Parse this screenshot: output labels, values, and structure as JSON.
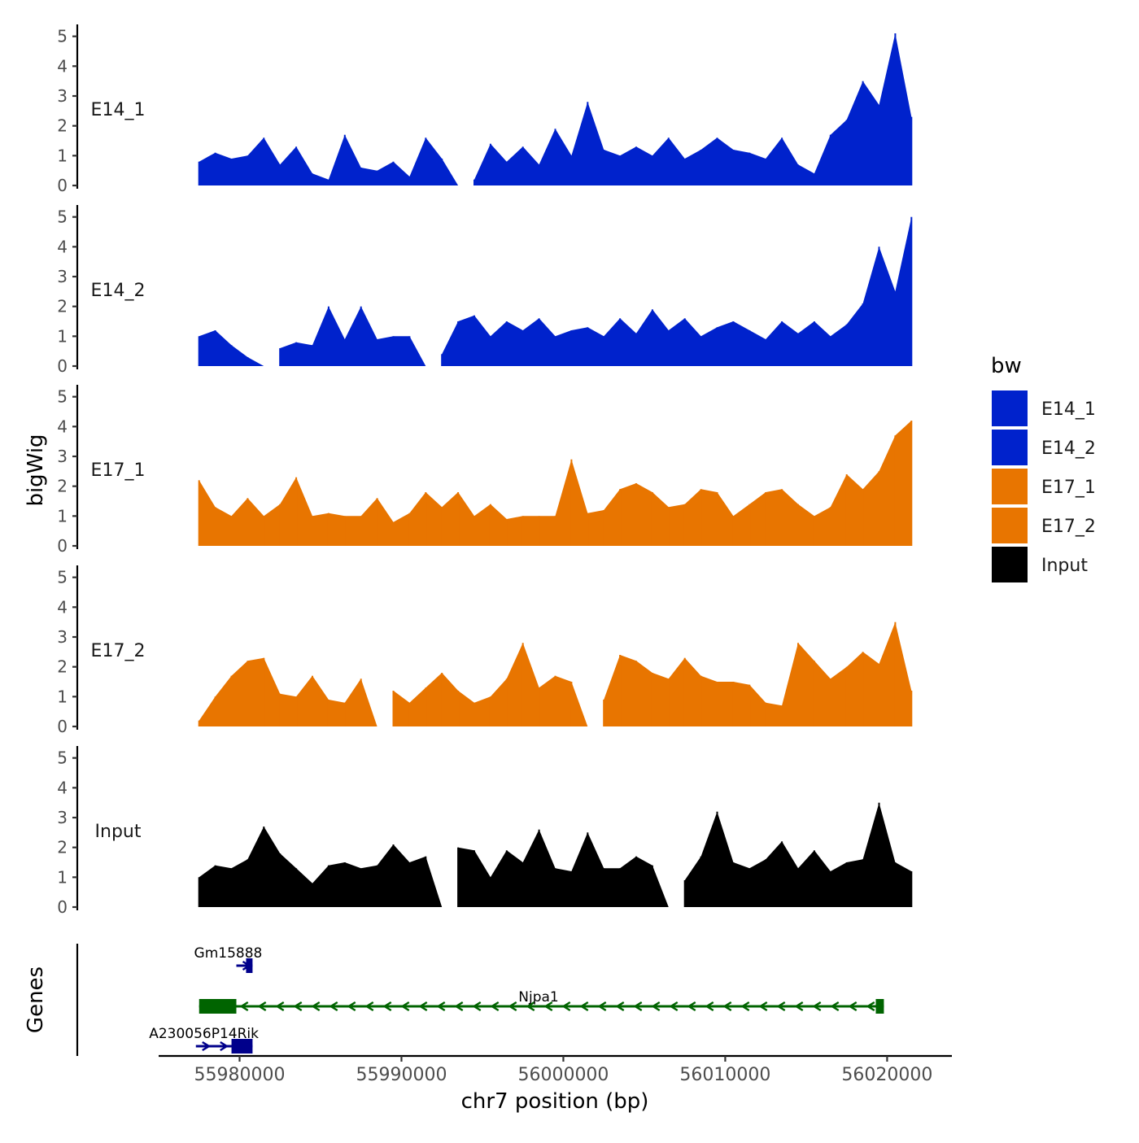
{
  "chart_data": {
    "type": "area",
    "ylabel": "bigWig",
    "xlabel": "chr7 position (bp)",
    "xlim": [
      55975000,
      56024000
    ],
    "xticks": [
      55980000,
      55990000,
      56000000,
      56010000,
      56020000
    ],
    "xtick_labels": [
      "55980000",
      "55990000",
      "56000000",
      "56010000",
      "56020000"
    ],
    "ylim": [
      0,
      5.4
    ],
    "yticks": [
      0,
      1,
      2,
      3,
      4,
      5
    ],
    "ytick_labels": [
      "0",
      "1",
      "2",
      "3",
      "4",
      "5"
    ],
    "genes_label": "Genes",
    "legend": {
      "title": "bw",
      "position": "right",
      "entries": [
        {
          "name": "E14_1",
          "color": "#0022cc"
        },
        {
          "name": "E14_2",
          "color": "#0022cc"
        },
        {
          "name": "E17_1",
          "color": "#e87500"
        },
        {
          "name": "E17_2",
          "color": "#e87500"
        },
        {
          "name": "Input",
          "color": "#000000"
        }
      ]
    },
    "series": [
      {
        "name": "E14_1",
        "color": "#0022cc",
        "x": [
          55977500,
          55978500,
          55979500,
          55980500,
          55981500,
          55982500,
          55983500,
          55984500,
          55985500,
          55986500,
          55987500,
          55988500,
          55989500,
          55990500,
          55991500,
          55992500,
          55993500,
          55994500,
          55995500,
          55996500,
          55997500,
          55998500,
          55999500,
          56000500,
          56001500,
          56002500,
          56003500,
          56004500,
          56005500,
          56006500,
          56007500,
          56008500,
          56009500,
          56010500,
          56011500,
          56012500,
          56013500,
          56014500,
          56015500,
          56016500,
          56017500,
          56018500,
          56019500,
          56020500,
          56021500
        ],
        "values": [
          0.8,
          1.1,
          0.9,
          1.0,
          1.6,
          0.7,
          1.3,
          0.4,
          0.2,
          1.7,
          0.6,
          0.5,
          0.8,
          0.3,
          1.6,
          0.9,
          0.0,
          0.2,
          1.4,
          0.8,
          1.3,
          0.7,
          1.9,
          1.0,
          2.8,
          1.2,
          1.0,
          1.3,
          1.0,
          1.6,
          0.9,
          1.2,
          1.6,
          1.2,
          1.1,
          0.9,
          1.6,
          0.7,
          0.4,
          1.7,
          2.2,
          3.5,
          2.7,
          5.1,
          2.3
        ]
      },
      {
        "name": "E14_2",
        "color": "#0022cc",
        "x": [
          55977500,
          55978500,
          55979500,
          55980500,
          55981500,
          55982500,
          55983500,
          55984500,
          55985500,
          55986500,
          55987500,
          55988500,
          55989500,
          55990500,
          55991500,
          55992500,
          55993500,
          55994500,
          55995500,
          55996500,
          55997500,
          55998500,
          55999500,
          56000500,
          56001500,
          56002500,
          56003500,
          56004500,
          56005500,
          56006500,
          56007500,
          56008500,
          56009500,
          56010500,
          56011500,
          56012500,
          56013500,
          56014500,
          56015500,
          56016500,
          56017500,
          56018500,
          56019500,
          56020500,
          56021500
        ],
        "values": [
          1.0,
          1.2,
          0.7,
          0.3,
          0.0,
          0.6,
          0.8,
          0.7,
          2.0,
          0.9,
          2.0,
          0.9,
          1.0,
          1.0,
          0.0,
          0.4,
          1.5,
          1.7,
          1.0,
          1.5,
          1.2,
          1.6,
          1.0,
          1.2,
          1.3,
          1.0,
          1.6,
          1.1,
          1.9,
          1.2,
          1.6,
          1.0,
          1.3,
          1.5,
          1.2,
          0.9,
          1.5,
          1.1,
          1.5,
          1.0,
          1.4,
          2.1,
          4.0,
          2.5,
          5.0
        ]
      },
      {
        "name": "E17_1",
        "color": "#e87500",
        "x": [
          55977500,
          55978500,
          55979500,
          55980500,
          55981500,
          55982500,
          55983500,
          55984500,
          55985500,
          55986500,
          55987500,
          55988500,
          55989500,
          55990500,
          55991500,
          55992500,
          55993500,
          55994500,
          55995500,
          55996500,
          55997500,
          55998500,
          55999500,
          56000500,
          56001500,
          56002500,
          56003500,
          56004500,
          56005500,
          56006500,
          56007500,
          56008500,
          56009500,
          56010500,
          56011500,
          56012500,
          56013500,
          56014500,
          56015500,
          56016500,
          56017500,
          56018500,
          56019500,
          56020500,
          56021500
        ],
        "values": [
          2.2,
          1.3,
          1.0,
          1.6,
          1.0,
          1.4,
          2.3,
          1.0,
          1.1,
          1.0,
          1.0,
          1.6,
          0.8,
          1.1,
          1.8,
          1.3,
          1.8,
          1.0,
          1.4,
          0.9,
          1.0,
          1.0,
          1.0,
          2.9,
          1.1,
          1.2,
          1.9,
          2.1,
          1.8,
          1.3,
          1.4,
          1.9,
          1.8,
          1.0,
          1.4,
          1.8,
          1.9,
          1.4,
          1.0,
          1.3,
          2.4,
          1.9,
          2.5,
          3.7,
          4.2
        ]
      },
      {
        "name": "E17_2",
        "color": "#e87500",
        "x": [
          55977500,
          55978500,
          55979500,
          55980500,
          55981500,
          55982500,
          55983500,
          55984500,
          55985500,
          55986500,
          55987500,
          55988500,
          55989500,
          55990500,
          55991500,
          55992500,
          55993500,
          55994500,
          55995500,
          55996500,
          55997500,
          55998500,
          55999500,
          56000500,
          56001500,
          56002500,
          56003500,
          56004500,
          56005500,
          56006500,
          56007500,
          56008500,
          56009500,
          56010500,
          56011500,
          56012500,
          56013500,
          56014500,
          56015500,
          56016500,
          56017500,
          56018500,
          56019500,
          56020500,
          56021500
        ],
        "values": [
          0.2,
          1.0,
          1.7,
          2.2,
          2.3,
          1.1,
          1.0,
          1.7,
          0.9,
          0.8,
          1.6,
          0.0,
          1.2,
          0.8,
          1.3,
          1.8,
          1.2,
          0.8,
          1.0,
          1.6,
          2.8,
          1.3,
          1.7,
          1.5,
          0.0,
          0.9,
          2.4,
          2.2,
          1.8,
          1.6,
          2.3,
          1.7,
          1.5,
          1.5,
          1.4,
          0.8,
          0.7,
          2.8,
          2.2,
          1.6,
          2.0,
          2.5,
          2.1,
          3.5,
          1.2
        ]
      },
      {
        "name": "Input",
        "color": "#000000",
        "x": [
          55977500,
          55978500,
          55979500,
          55980500,
          55981500,
          55982500,
          55983500,
          55984500,
          55985500,
          55986500,
          55987500,
          55988500,
          55989500,
          55990500,
          55991500,
          55992500,
          55993500,
          55994500,
          55995500,
          55996500,
          55997500,
          55998500,
          55999500,
          56000500,
          56001500,
          56002500,
          56003500,
          56004500,
          56005500,
          56006500,
          56007500,
          56008500,
          56009500,
          56010500,
          56011500,
          56012500,
          56013500,
          56014500,
          56015500,
          56016500,
          56017500,
          56018500,
          56019500,
          56020500,
          56021500
        ],
        "values": [
          1.0,
          1.4,
          1.3,
          1.6,
          2.7,
          1.8,
          1.3,
          0.8,
          1.4,
          1.5,
          1.3,
          1.4,
          2.1,
          1.5,
          1.7,
          0.0,
          2.0,
          1.9,
          1.0,
          1.9,
          1.5,
          2.6,
          1.3,
          1.2,
          2.5,
          1.3,
          1.3,
          1.7,
          1.4,
          0.0,
          0.9,
          1.7,
          3.2,
          1.5,
          1.3,
          1.6,
          2.2,
          1.3,
          1.9,
          1.2,
          1.5,
          1.6,
          3.5,
          1.5,
          1.2
        ]
      }
    ],
    "genes": [
      {
        "name": "Gm15888",
        "start": 55979800,
        "end": 55980800,
        "strand": "+",
        "color": "#00008b",
        "exons": [
          [
            55980400,
            55980800
          ]
        ]
      },
      {
        "name": "Njpa1",
        "start": 55977500,
        "end": 56019800,
        "strand": "-",
        "color": "#006400",
        "exons": [
          [
            55977500,
            55979800
          ],
          [
            56019300,
            56019800
          ]
        ]
      },
      {
        "name": "A230056P14Rik",
        "start": 55977300,
        "end": 55980800,
        "strand": "+",
        "color": "#00008b",
        "exons": [
          [
            55979500,
            55980800
          ]
        ]
      }
    ]
  }
}
